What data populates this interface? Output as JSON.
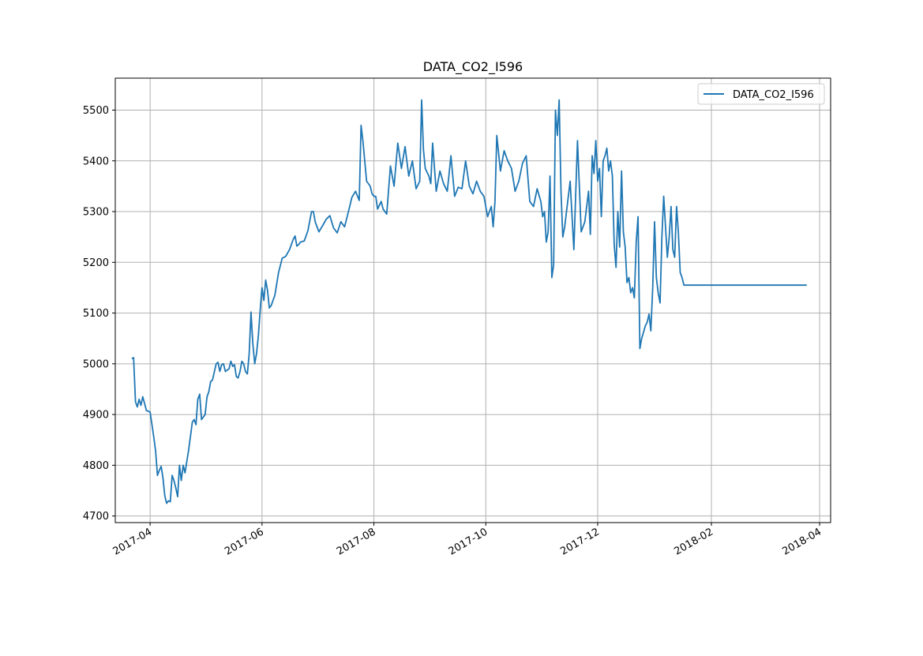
{
  "chart_data": {
    "type": "line",
    "title": "DATA_CO2_I596",
    "xlabel": "",
    "ylabel": "",
    "x_type": "date",
    "xlim": [
      "2017-03-13",
      "2018-04-07"
    ],
    "ylim": [
      4687,
      5563
    ],
    "x_ticks": [
      "2017-04",
      "2017-06",
      "2017-08",
      "2017-10",
      "2017-12",
      "2018-02",
      "2018-04"
    ],
    "x_tick_dates": [
      "2017-04-01",
      "2017-06-01",
      "2017-08-01",
      "2017-10-01",
      "2017-12-01",
      "2018-02-01",
      "2018-04-01"
    ],
    "y_ticks": [
      4700,
      4800,
      4900,
      5000,
      5100,
      5200,
      5300,
      5400,
      5500
    ],
    "grid": true,
    "legend_position": "upper right",
    "series": [
      {
        "name": "DATA_CO2_I596",
        "color": "#1f77b4",
        "x": [
          "2017-03-22",
          "2017-03-23",
          "2017-03-24",
          "2017-03-25",
          "2017-03-26",
          "2017-03-27",
          "2017-03-28",
          "2017-03-30",
          "2017-04-01",
          "2017-04-03",
          "2017-04-04",
          "2017-04-05",
          "2017-04-06",
          "2017-04-07",
          "2017-04-08",
          "2017-04-09",
          "2017-04-10",
          "2017-04-11",
          "2017-04-12",
          "2017-04-13",
          "2017-04-14",
          "2017-04-15",
          "2017-04-16",
          "2017-04-17",
          "2017-04-18",
          "2017-04-19",
          "2017-04-20",
          "2017-04-22",
          "2017-04-24",
          "2017-04-25",
          "2017-04-26",
          "2017-04-27",
          "2017-04-28",
          "2017-04-29",
          "2017-05-01",
          "2017-05-02",
          "2017-05-03",
          "2017-05-04",
          "2017-05-05",
          "2017-05-07",
          "2017-05-08",
          "2017-05-09",
          "2017-05-10",
          "2017-05-11",
          "2017-05-12",
          "2017-05-14",
          "2017-05-15",
          "2017-05-16",
          "2017-05-17",
          "2017-05-18",
          "2017-05-19",
          "2017-05-20",
          "2017-05-21",
          "2017-05-22",
          "2017-05-23",
          "2017-05-24",
          "2017-05-25",
          "2017-05-26",
          "2017-05-27",
          "2017-05-28",
          "2017-05-29",
          "2017-05-30",
          "2017-05-31",
          "2017-06-01",
          "2017-06-02",
          "2017-06-03",
          "2017-06-04",
          "2017-06-05",
          "2017-06-06",
          "2017-06-08",
          "2017-06-10",
          "2017-06-12",
          "2017-06-14",
          "2017-06-16",
          "2017-06-18",
          "2017-06-19",
          "2017-06-20",
          "2017-06-21",
          "2017-06-22",
          "2017-06-24",
          "2017-06-26",
          "2017-06-28",
          "2017-06-29",
          "2017-06-30",
          "2017-07-02",
          "2017-07-04",
          "2017-07-06",
          "2017-07-08",
          "2017-07-10",
          "2017-07-12",
          "2017-07-14",
          "2017-07-16",
          "2017-07-18",
          "2017-07-20",
          "2017-07-22",
          "2017-07-24",
          "2017-07-25",
          "2017-07-26",
          "2017-07-28",
          "2017-07-30",
          "2017-07-31",
          "2017-08-01",
          "2017-08-02",
          "2017-08-03",
          "2017-08-05",
          "2017-08-06",
          "2017-08-08",
          "2017-08-10",
          "2017-08-12",
          "2017-08-14",
          "2017-08-16",
          "2017-08-18",
          "2017-08-20",
          "2017-08-22",
          "2017-08-24",
          "2017-08-26",
          "2017-08-27",
          "2017-08-28",
          "2017-08-29",
          "2017-08-31",
          "2017-09-01",
          "2017-09-02",
          "2017-09-04",
          "2017-09-06",
          "2017-09-08",
          "2017-09-10",
          "2017-09-12",
          "2017-09-14",
          "2017-09-16",
          "2017-09-18",
          "2017-09-20",
          "2017-09-22",
          "2017-09-24",
          "2017-09-26",
          "2017-09-28",
          "2017-09-30",
          "2017-10-02",
          "2017-10-04",
          "2017-10-05",
          "2017-10-06",
          "2017-10-07",
          "2017-10-09",
          "2017-10-11",
          "2017-10-13",
          "2017-10-15",
          "2017-10-17",
          "2017-10-19",
          "2017-10-21",
          "2017-10-23",
          "2017-10-25",
          "2017-10-27",
          "2017-10-29",
          "2017-10-31",
          "2017-11-01",
          "2017-11-02",
          "2017-11-03",
          "2017-11-04",
          "2017-11-05",
          "2017-11-06",
          "2017-11-07",
          "2017-11-08",
          "2017-11-09",
          "2017-11-10",
          "2017-11-11",
          "2017-11-12",
          "2017-11-13",
          "2017-11-14",
          "2017-11-16",
          "2017-11-18",
          "2017-11-20",
          "2017-11-22",
          "2017-11-24",
          "2017-11-26",
          "2017-11-27",
          "2017-11-28",
          "2017-11-29",
          "2017-11-30",
          "2017-12-01",
          "2017-12-02",
          "2017-12-03",
          "2017-12-04",
          "2017-12-05",
          "2017-12-06",
          "2017-12-07",
          "2017-12-08",
          "2017-12-09",
          "2017-12-10",
          "2017-12-11",
          "2017-12-12",
          "2017-12-13",
          "2017-12-14",
          "2017-12-15",
          "2017-12-16",
          "2017-12-17",
          "2017-12-18",
          "2017-12-19",
          "2017-12-20",
          "2017-12-21",
          "2017-12-22",
          "2017-12-23",
          "2017-12-24",
          "2017-12-25",
          "2017-12-26",
          "2017-12-27",
          "2017-12-28",
          "2017-12-29",
          "2017-12-30",
          "2017-12-31",
          "2018-01-01",
          "2018-01-02",
          "2018-01-03",
          "2018-01-04",
          "2018-01-05",
          "2018-01-06",
          "2018-01-07",
          "2018-01-08",
          "2018-01-09",
          "2018-01-10",
          "2018-01-11",
          "2018-01-12",
          "2018-01-13",
          "2018-01-14",
          "2018-01-15",
          "2018-01-16",
          "2018-01-17",
          "2018-03-25"
        ],
        "y": [
          5010,
          5012,
          4925,
          4915,
          4930,
          4918,
          4935,
          4908,
          4905,
          4855,
          4828,
          4780,
          4790,
          4798,
          4775,
          4740,
          4725,
          4730,
          4728,
          4780,
          4770,
          4755,
          4738,
          4800,
          4770,
          4800,
          4785,
          4830,
          4885,
          4890,
          4880,
          4930,
          4940,
          4890,
          4900,
          4935,
          4945,
          4965,
          4968,
          5000,
          5003,
          4985,
          4998,
          5000,
          4985,
          4990,
          5005,
          4995,
          4998,
          4975,
          4972,
          4985,
          5005,
          5000,
          4985,
          4980,
          5020,
          5102,
          5040,
          5000,
          5020,
          5055,
          5105,
          5150,
          5125,
          5165,
          5145,
          5110,
          5115,
          5135,
          5180,
          5208,
          5212,
          5225,
          5245,
          5252,
          5232,
          5235,
          5240,
          5242,
          5262,
          5300,
          5300,
          5280,
          5260,
          5272,
          5285,
          5292,
          5268,
          5258,
          5280,
          5270,
          5298,
          5328,
          5340,
          5322,
          5470,
          5440,
          5360,
          5350,
          5335,
          5330,
          5330,
          5305,
          5320,
          5305,
          5295,
          5390,
          5350,
          5435,
          5385,
          5428,
          5370,
          5400,
          5345,
          5360,
          5520,
          5422,
          5385,
          5370,
          5355,
          5435,
          5340,
          5380,
          5355,
          5340,
          5410,
          5330,
          5348,
          5345,
          5400,
          5350,
          5335,
          5360,
          5340,
          5330,
          5290,
          5310,
          5270,
          5320,
          5450,
          5380,
          5420,
          5400,
          5385,
          5340,
          5360,
          5395,
          5410,
          5320,
          5310,
          5345,
          5320,
          5290,
          5300,
          5240,
          5260,
          5370,
          5170,
          5195,
          5500,
          5450,
          5520,
          5340,
          5250,
          5270,
          5300,
          5360,
          5225,
          5440,
          5260,
          5280,
          5340,
          5255,
          5410,
          5375,
          5440,
          5360,
          5385,
          5290,
          5400,
          5410,
          5425,
          5380,
          5400,
          5370,
          5235,
          5190,
          5300,
          5230,
          5380,
          5260,
          5230,
          5160,
          5170,
          5140,
          5150,
          5130,
          5240,
          5290,
          5030,
          5050,
          5062,
          5075,
          5082,
          5098,
          5065,
          5150,
          5280,
          5170,
          5140,
          5120,
          5250,
          5330,
          5270,
          5210,
          5250,
          5310,
          5225,
          5210,
          5310,
          5258,
          5180,
          5170,
          5155,
          5155
        ]
      }
    ]
  }
}
